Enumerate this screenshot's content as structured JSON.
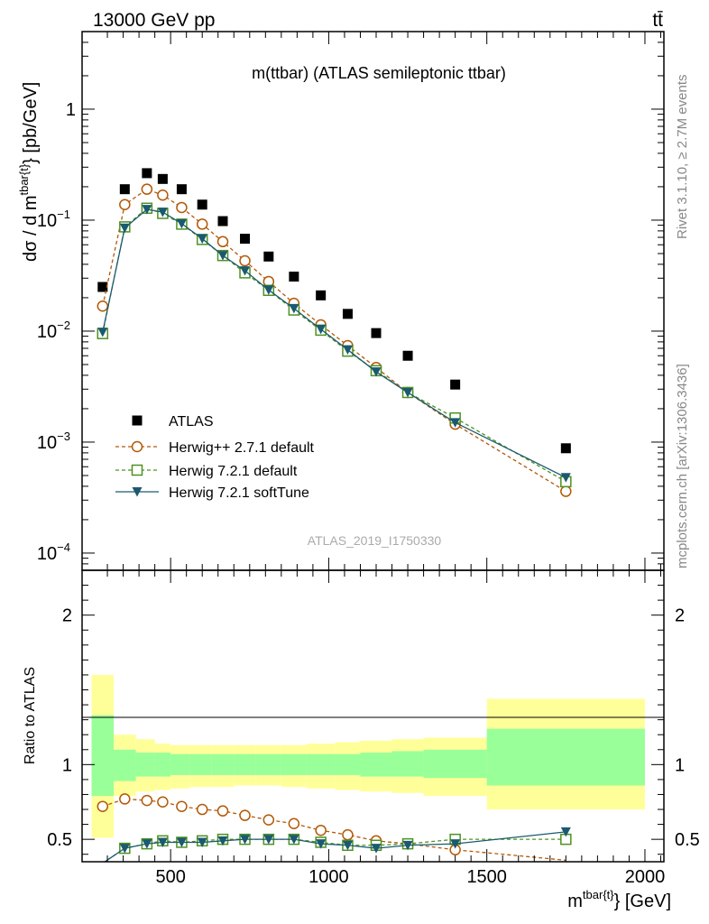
{
  "header": {
    "energy_label": "13000 GeV pp",
    "process_label": "tt̄"
  },
  "sidebar": {
    "rivet_label": "Rivet 3.1.10, ≥ 2.7M events",
    "mcplots_label": "mcplots.cern.ch [arXiv:1306.3436]"
  },
  "chart_data": [
    {
      "type": "scatter",
      "title": "m(ttbar) (ATLAS semileptonic ttbar)",
      "watermark": "ATLAS_2019_I1750330",
      "ylabel": "dσ / d m^{tbar{t}} [pb/GeV]",
      "yscale": "log",
      "ylim": [
        7e-05,
        5
      ],
      "xlim": [
        220,
        2060
      ],
      "yticks": [
        {
          "value": 0.0001,
          "base": "10",
          "exp": "−4"
        },
        {
          "value": 0.001,
          "base": "10",
          "exp": "−3"
        },
        {
          "value": 0.01,
          "base": "10",
          "exp": "−2"
        },
        {
          "value": 0.1,
          "base": "10",
          "exp": "−1"
        },
        {
          "value": 1,
          "base": "1",
          "exp": ""
        }
      ],
      "legend_position": "center-left",
      "x": [
        285,
        355,
        425,
        475,
        535,
        600,
        665,
        735,
        810,
        890,
        975,
        1060,
        1150,
        1250,
        1400,
        1750
      ],
      "series": [
        {
          "name": "ATLAS",
          "color": "#000000",
          "marker": "square-filled",
          "values": [
            0.025,
            0.19,
            0.265,
            0.235,
            0.19,
            0.138,
            0.098,
            0.068,
            0.047,
            0.031,
            0.021,
            0.0143,
            0.0096,
            0.006,
            0.0033,
            0.00088
          ]
        },
        {
          "name": "Herwig++ 2.7.1 default",
          "color": "#b35806",
          "marker": "circle-open",
          "dash": "4,3",
          "values": [
            0.0168,
            0.138,
            0.19,
            0.168,
            0.13,
            0.092,
            0.064,
            0.043,
            0.028,
            0.0178,
            0.0114,
            0.0074,
            0.0047,
            0.0028,
            0.00145,
            0.00036
          ]
        },
        {
          "name": "Herwig 7.2.1 default",
          "color": "#4d9221",
          "marker": "square-open",
          "dash": "4,3",
          "values": [
            0.0095,
            0.087,
            0.128,
            0.115,
            0.092,
            0.067,
            0.048,
            0.0335,
            0.0233,
            0.0155,
            0.0102,
            0.0066,
            0.0044,
            0.0028,
            0.00165,
            0.00044
          ]
        },
        {
          "name": "Herwig 7.2.1 softTune",
          "color": "#1b5a6e",
          "marker": "triangle-down-filled",
          "values": [
            0.0098,
            0.085,
            0.125,
            0.118,
            0.093,
            0.068,
            0.048,
            0.035,
            0.0235,
            0.016,
            0.0104,
            0.0068,
            0.0043,
            0.0028,
            0.0015,
            0.00048
          ]
        }
      ]
    },
    {
      "type": "line",
      "ylabel": "Ratio to ATLAS",
      "xlabel": "m^{tbar{t}} [GeV]",
      "ylim": [
        0.35,
        2.3
      ],
      "xlim": [
        220,
        2060
      ],
      "xticks": [
        500,
        1000,
        1500,
        2000
      ],
      "yticks": [
        0.5,
        1,
        2
      ],
      "x": [
        285,
        355,
        425,
        475,
        535,
        600,
        665,
        735,
        810,
        890,
        975,
        1060,
        1150,
        1250,
        1400,
        1750
      ],
      "bin_edges": [
        250,
        320,
        390,
        450,
        500,
        560,
        630,
        700,
        770,
        850,
        930,
        1020,
        1100,
        1200,
        1300,
        1500,
        2000
      ],
      "band_inner": [
        [
          0.79,
          1.33
        ],
        [
          0.89,
          1.1
        ],
        [
          0.92,
          1.08
        ],
        [
          0.92,
          1.08
        ],
        [
          0.93,
          1.07
        ],
        [
          0.93,
          1.07
        ],
        [
          0.93,
          1.07
        ],
        [
          0.93,
          1.07
        ],
        [
          0.93,
          1.07
        ],
        [
          0.93,
          1.07
        ],
        [
          0.93,
          1.07
        ],
        [
          0.93,
          1.07
        ],
        [
          0.92,
          1.08
        ],
        [
          0.92,
          1.09
        ],
        [
          0.91,
          1.1
        ],
        [
          0.86,
          1.24
        ]
      ],
      "band_outer": [
        [
          0.51,
          1.6
        ],
        [
          0.79,
          1.2
        ],
        [
          0.82,
          1.17
        ],
        [
          0.83,
          1.14
        ],
        [
          0.84,
          1.13
        ],
        [
          0.85,
          1.13
        ],
        [
          0.85,
          1.13
        ],
        [
          0.86,
          1.13
        ],
        [
          0.86,
          1.13
        ],
        [
          0.85,
          1.13
        ],
        [
          0.84,
          1.14
        ],
        [
          0.83,
          1.15
        ],
        [
          0.82,
          1.16
        ],
        [
          0.81,
          1.17
        ],
        [
          0.79,
          1.18
        ],
        [
          0.7,
          1.44
        ]
      ],
      "series": [
        {
          "name": "Herwig++ 2.7.1 default",
          "color": "#b35806",
          "marker": "circle-open",
          "dash": "4,3",
          "values": [
            0.72,
            0.77,
            0.76,
            0.75,
            0.72,
            0.7,
            0.69,
            0.66,
            0.63,
            0.605,
            0.56,
            0.53,
            0.49,
            0.47,
            0.43,
            0.36
          ]
        },
        {
          "name": "Herwig 7.2.1 default",
          "color": "#4d9221",
          "marker": "square-open",
          "dash": "4,3",
          "values": [
            0.34,
            0.44,
            0.47,
            0.49,
            0.48,
            0.49,
            0.5,
            0.5,
            0.5,
            0.5,
            0.48,
            0.46,
            0.46,
            0.47,
            0.5,
            0.5
          ]
        },
        {
          "name": "Herwig 7.2.1 softTune",
          "color": "#1b5a6e",
          "marker": "triangle-down-filled",
          "values": [
            0.34,
            0.44,
            0.47,
            0.48,
            0.48,
            0.48,
            0.49,
            0.5,
            0.5,
            0.5,
            0.47,
            0.46,
            0.44,
            0.46,
            0.47,
            0.55
          ]
        }
      ]
    }
  ]
}
